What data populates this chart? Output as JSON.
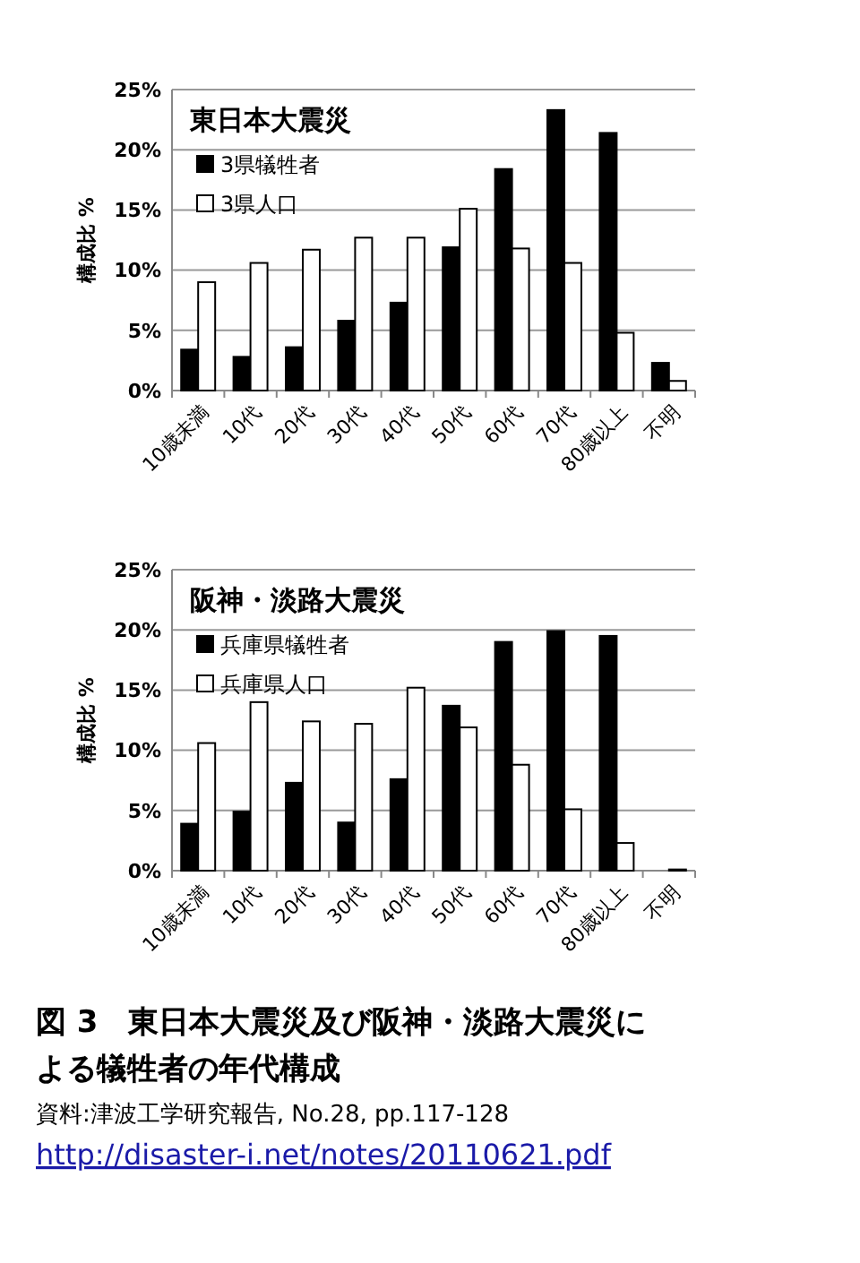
{
  "chart_data": [
    {
      "type": "bar",
      "title": "東日本大震災",
      "ylabel": "構成比 %",
      "categories": [
        "10歳未満",
        "10代",
        "20代",
        "30代",
        "40代",
        "50代",
        "60代",
        "70代",
        "80歳以上",
        "不明"
      ],
      "series": [
        {
          "name": "3県犠牲者",
          "color": "#000000",
          "values": [
            3.4,
            2.8,
            3.6,
            5.8,
            7.3,
            11.9,
            18.4,
            23.3,
            21.4,
            2.3
          ]
        },
        {
          "name": "3県人口",
          "color": "#ffffff",
          "values": [
            9.0,
            10.6,
            11.7,
            12.7,
            12.7,
            15.1,
            11.8,
            10.6,
            4.8,
            0.8
          ]
        }
      ],
      "ylim": [
        0,
        25
      ],
      "yticks": [
        {
          "value": 0,
          "label": "0%"
        },
        {
          "value": 5,
          "label": "5%"
        },
        {
          "value": 10,
          "label": "10%"
        },
        {
          "value": 15,
          "label": "15%"
        },
        {
          "value": 20,
          "label": "20%"
        },
        {
          "value": 25,
          "label": "25%"
        }
      ],
      "grid": "y",
      "legend": "top left"
    },
    {
      "type": "bar",
      "title": "阪神・淡路大震災",
      "ylabel": "構成比 %",
      "categories": [
        "10歳未満",
        "10代",
        "20代",
        "30代",
        "40代",
        "50代",
        "60代",
        "70代",
        "80歳以上",
        "不明"
      ],
      "series": [
        {
          "name": "兵庫県犠牲者",
          "color": "#000000",
          "values": [
            3.9,
            4.9,
            7.3,
            4.0,
            7.6,
            13.7,
            19.0,
            19.9,
            19.5,
            0
          ]
        },
        {
          "name": "兵庫県人口",
          "color": "#ffffff",
          "values": [
            10.6,
            14.0,
            12.4,
            12.2,
            15.2,
            11.9,
            8.8,
            5.1,
            2.3,
            0.1
          ]
        }
      ],
      "ylim": [
        0,
        25
      ],
      "yticks": [
        {
          "value": 0,
          "label": "0%"
        },
        {
          "value": 5,
          "label": "5%"
        },
        {
          "value": 10,
          "label": "10%"
        },
        {
          "value": 15,
          "label": "15%"
        },
        {
          "value": 20,
          "label": "20%"
        },
        {
          "value": 25,
          "label": "25%"
        }
      ],
      "grid": "y",
      "legend": "top left",
      "annotations": [
        "図 3　東日本大震災及び阪神・淡路大震災による犠牲者の年代構成",
        "資料:津波工学研究報告, No.28, pp.117-128",
        "http://disaster-i.net/notes/20110621.pdf"
      ]
    }
  ]
}
